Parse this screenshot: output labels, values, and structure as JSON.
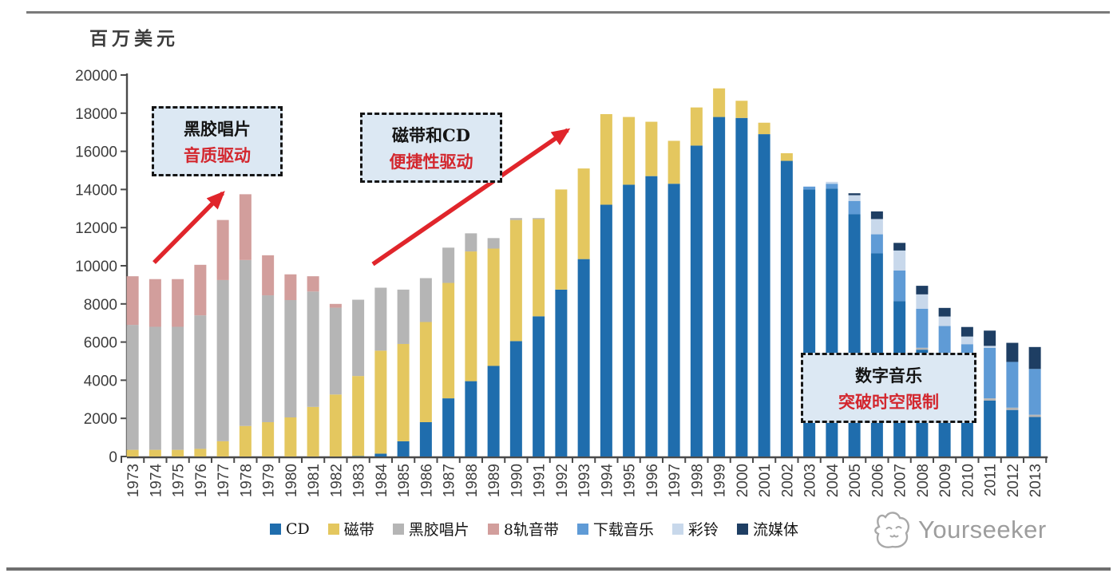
{
  "page": {
    "y_axis_unit_label": "百万美元",
    "watermark": "Yourseeker"
  },
  "annotations": [
    {
      "line1": "黑胶唱片",
      "line2": "音质驱动"
    },
    {
      "line1": "磁带和CD",
      "line2": "便捷性驱动"
    },
    {
      "line1": "数字音乐",
      "line2": "突破时空限制"
    }
  ],
  "chart_data": {
    "type": "bar",
    "stacked": true,
    "title": "",
    "xlabel": "",
    "ylabel": "百万美元",
    "ylim": [
      0,
      20000
    ],
    "ytick_step": 2000,
    "grid": false,
    "legend_position": "bottom",
    "accent_arrow_color": "#E0252B",
    "categories": [
      1973,
      1974,
      1975,
      1976,
      1977,
      1978,
      1979,
      1980,
      1981,
      1982,
      1983,
      1984,
      1985,
      1986,
      1987,
      1988,
      1989,
      1990,
      1991,
      1992,
      1993,
      1994,
      1995,
      1996,
      1997,
      1998,
      1999,
      2000,
      2001,
      2002,
      2003,
      2004,
      2005,
      2006,
      2007,
      2008,
      2009,
      2010,
      2011,
      2012,
      2013
    ],
    "series": [
      {
        "name": "CD",
        "color": "#1F6DAD",
        "values": [
          0,
          0,
          0,
          0,
          0,
          0,
          0,
          0,
          0,
          0,
          20,
          150,
          800,
          1800,
          3050,
          3950,
          4750,
          6050,
          7350,
          8750,
          10350,
          13200,
          14250,
          14700,
          14300,
          16300,
          17800,
          17750,
          16900,
          15500,
          14000,
          14050,
          12700,
          10650,
          8150,
          5600,
          3820,
          3190,
          2930,
          2440,
          2070
        ]
      },
      {
        "name": "磁带",
        "color": "#E4C75F",
        "values": [
          350,
          350,
          350,
          400,
          800,
          1600,
          1800,
          2050,
          2600,
          3250,
          4200,
          5400,
          5100,
          5250,
          6050,
          6800,
          6150,
          6350,
          5100,
          5250,
          4750,
          4750,
          3550,
          2850,
          2250,
          2000,
          1500,
          900,
          600,
          400,
          0,
          0,
          0,
          0,
          0,
          0,
          0,
          0,
          0,
          0,
          0
        ]
      },
      {
        "name": "黑胶唱片",
        "color": "#B5B5B5",
        "values": [
          6550,
          6450,
          6450,
          7000,
          8450,
          8700,
          6650,
          6150,
          6050,
          4550,
          4000,
          3300,
          2850,
          2300,
          1850,
          950,
          550,
          100,
          50,
          0,
          0,
          0,
          0,
          0,
          0,
          0,
          0,
          0,
          0,
          0,
          0,
          0,
          0,
          0,
          0,
          100,
          120,
          100,
          120,
          120,
          120
        ]
      },
      {
        "name": "8轨音带",
        "color": "#D29E9C",
        "values": [
          2550,
          2500,
          2500,
          2650,
          3150,
          3450,
          2100,
          1350,
          800,
          200,
          0,
          0,
          0,
          0,
          0,
          0,
          0,
          0,
          0,
          0,
          0,
          0,
          0,
          0,
          0,
          0,
          0,
          0,
          0,
          0,
          0,
          0,
          0,
          0,
          0,
          0,
          0,
          0,
          0,
          0,
          0
        ]
      },
      {
        "name": "下载音乐",
        "color": "#5F9BD6",
        "values": [
          0,
          0,
          0,
          0,
          0,
          0,
          0,
          0,
          0,
          0,
          0,
          0,
          0,
          0,
          0,
          0,
          0,
          0,
          0,
          0,
          0,
          0,
          0,
          0,
          0,
          0,
          0,
          0,
          0,
          0,
          150,
          250,
          700,
          1000,
          1600,
          2050,
          2900,
          2600,
          2650,
          2400,
          2400
        ]
      },
      {
        "name": "彩铃",
        "color": "#C8D8EB",
        "values": [
          0,
          0,
          0,
          0,
          0,
          0,
          0,
          0,
          0,
          0,
          0,
          0,
          0,
          0,
          0,
          0,
          0,
          0,
          0,
          0,
          0,
          0,
          0,
          0,
          0,
          0,
          0,
          0,
          0,
          0,
          0,
          100,
          300,
          800,
          1050,
          750,
          500,
          400,
          100,
          0,
          0
        ]
      },
      {
        "name": "流媒体",
        "color": "#1E3E63",
        "values": [
          0,
          0,
          0,
          0,
          0,
          0,
          0,
          0,
          0,
          0,
          0,
          0,
          0,
          0,
          0,
          0,
          0,
          0,
          0,
          0,
          0,
          0,
          0,
          0,
          0,
          0,
          0,
          0,
          0,
          0,
          0,
          0,
          100,
          400,
          400,
          450,
          450,
          500,
          800,
          1000,
          1150
        ]
      }
    ]
  }
}
